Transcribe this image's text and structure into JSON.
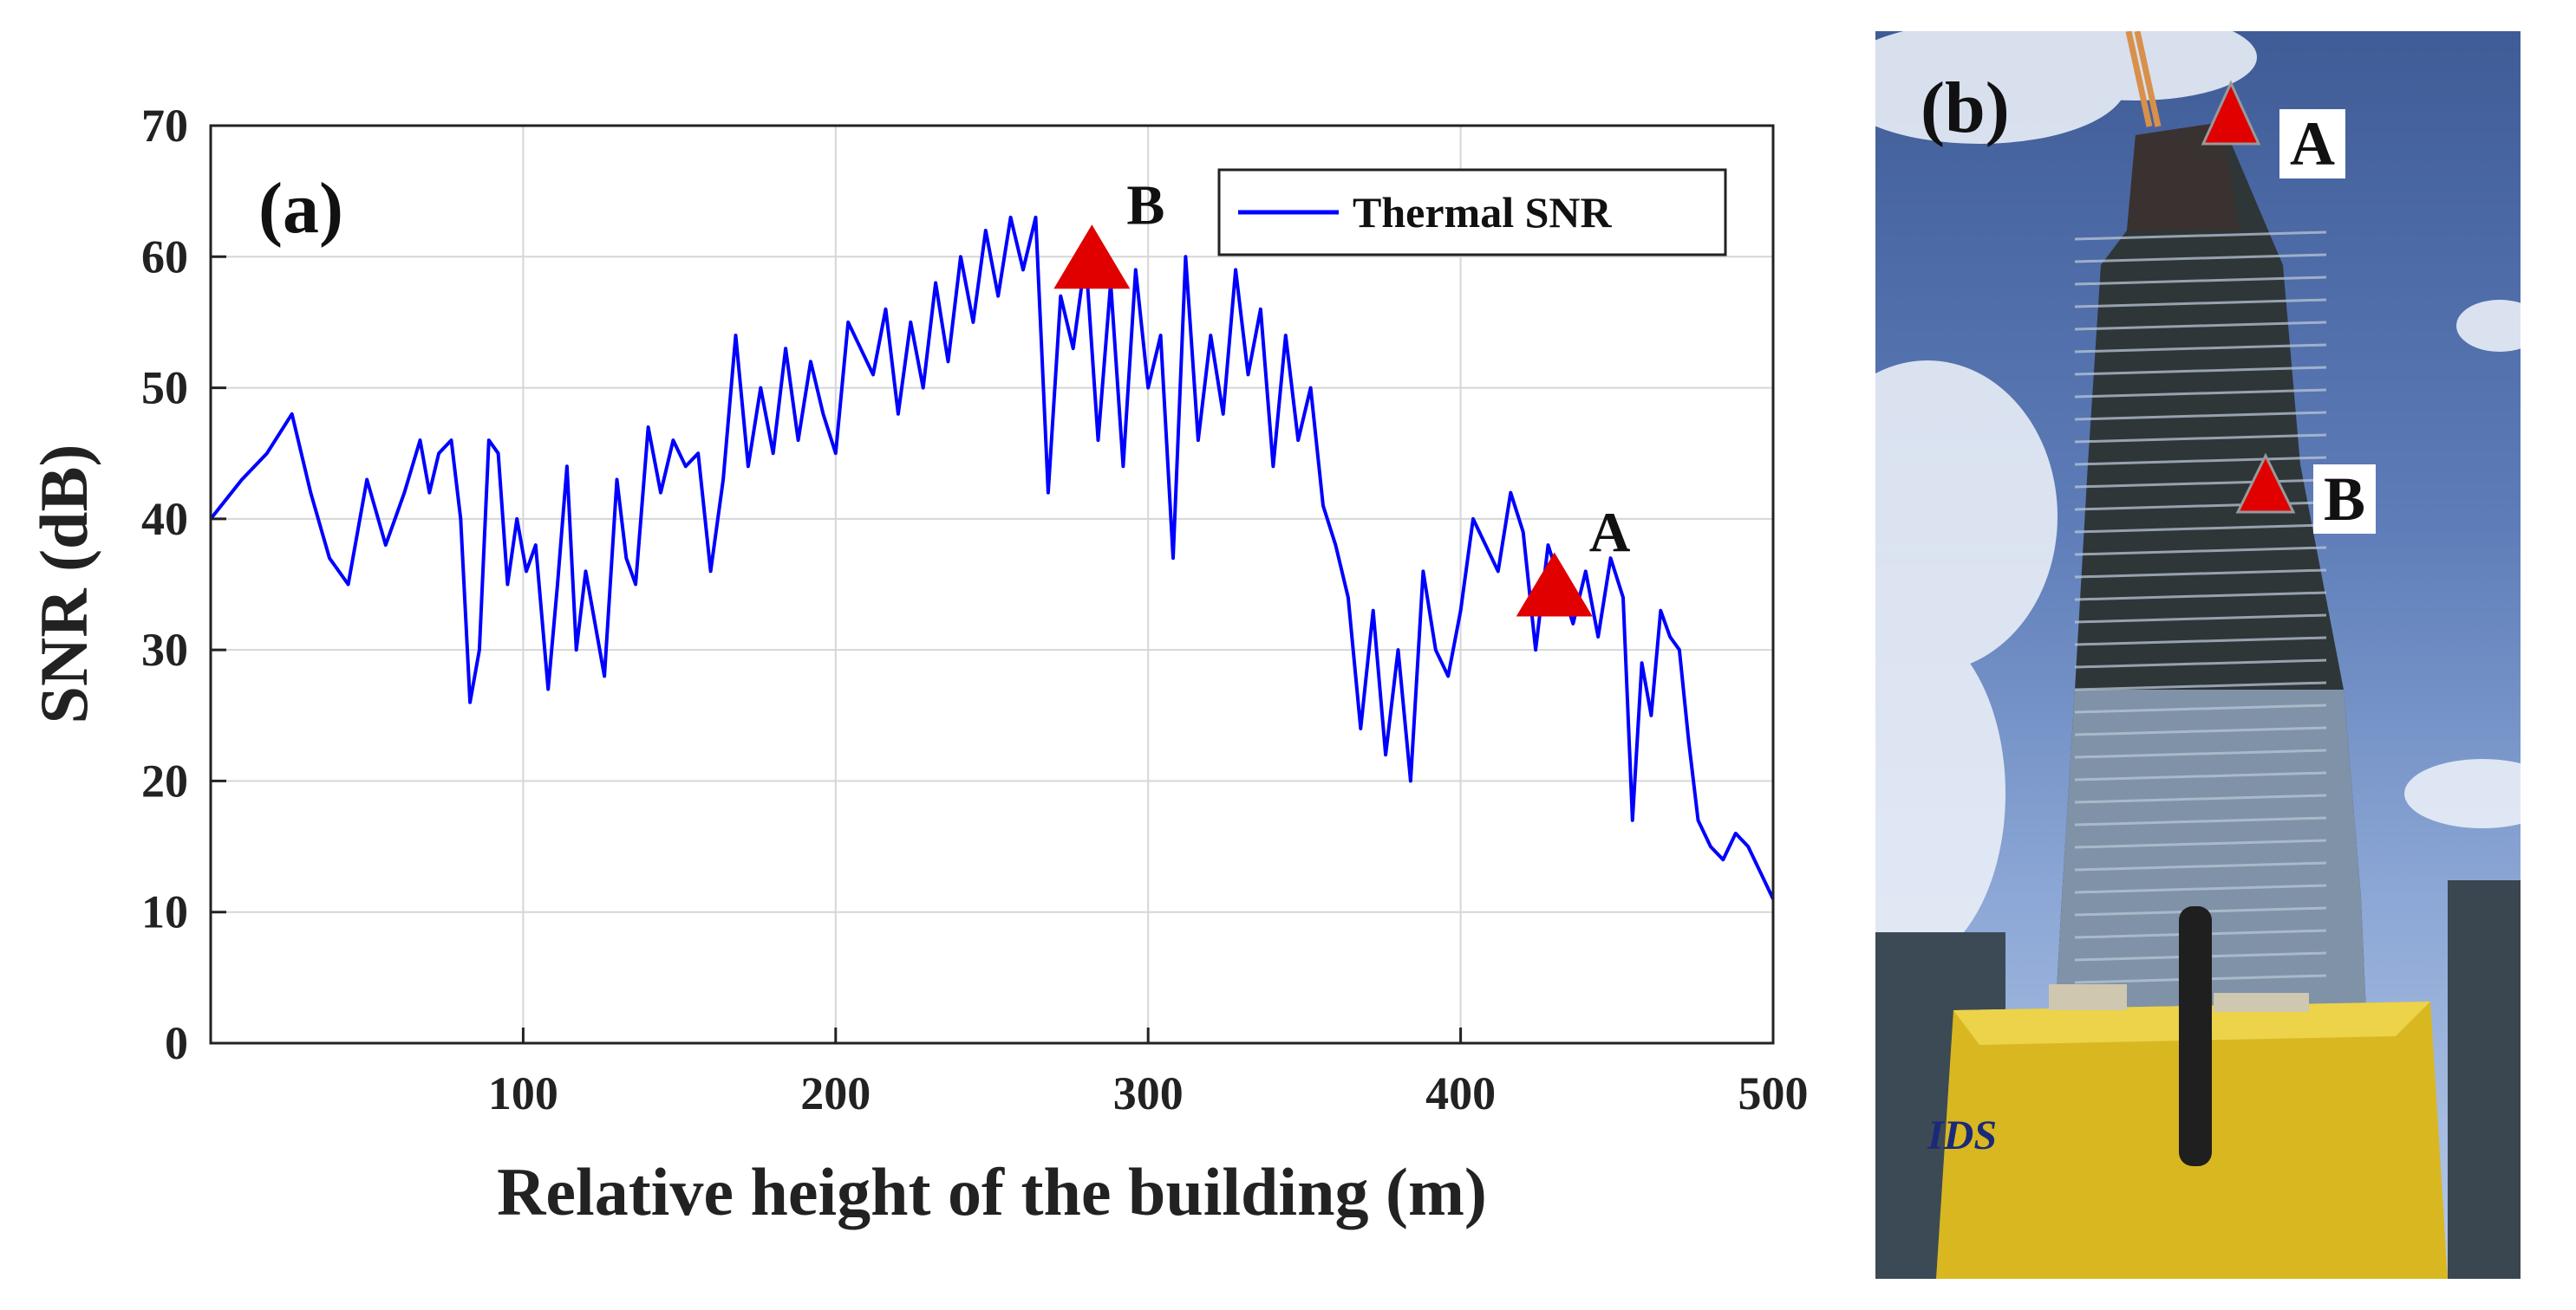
{
  "chart_data": {
    "type": "line",
    "panel_label": "(a)",
    "xlabel": "Relative height of the building (m)",
    "ylabel": "SNR (dB)",
    "xlim": [
      0,
      500
    ],
    "ylim": [
      0,
      70
    ],
    "xticks": [
      100,
      200,
      300,
      400,
      500
    ],
    "yticks": [
      0,
      10,
      20,
      30,
      40,
      50,
      60,
      70
    ],
    "grid": true,
    "legend_position": "top-right",
    "series": [
      {
        "name": "Thermal SNR",
        "color": "#0000ff",
        "x": [
          0,
          10,
          18,
          26,
          32,
          38,
          44,
          50,
          56,
          62,
          67,
          70,
          73,
          77,
          80,
          83,
          86,
          89,
          92,
          95,
          98,
          101,
          104,
          108,
          111,
          114,
          117,
          120,
          123,
          126,
          130,
          133,
          136,
          140,
          144,
          148,
          152,
          156,
          160,
          164,
          168,
          172,
          176,
          180,
          184,
          188,
          192,
          196,
          200,
          204,
          208,
          212,
          216,
          220,
          224,
          228,
          232,
          236,
          240,
          244,
          248,
          252,
          256,
          260,
          264,
          268,
          272,
          276,
          280,
          284,
          288,
          292,
          296,
          300,
          304,
          308,
          312,
          316,
          320,
          324,
          328,
          332,
          336,
          340,
          344,
          348,
          352,
          356,
          360,
          364,
          368,
          372,
          376,
          380,
          384,
          388,
          392,
          396,
          400,
          404,
          408,
          412,
          416,
          420,
          424,
          428,
          432,
          436,
          440,
          444,
          448,
          452,
          455,
          458,
          461,
          464,
          467,
          470,
          473,
          476,
          480,
          484,
          488,
          492,
          496,
          500
        ],
        "values": [
          40,
          43,
          45,
          48,
          42,
          37,
          35,
          43,
          38,
          42,
          46,
          42,
          45,
          46,
          40,
          26,
          30,
          46,
          45,
          35,
          40,
          36,
          38,
          27,
          35,
          44,
          30,
          36,
          32,
          28,
          43,
          37,
          35,
          47,
          42,
          46,
          44,
          45,
          36,
          43,
          54,
          44,
          50,
          45,
          53,
          46,
          52,
          48,
          45,
          55,
          53,
          51,
          56,
          48,
          55,
          50,
          58,
          52,
          60,
          55,
          62,
          57,
          63,
          59,
          63,
          42,
          57,
          53,
          60,
          46,
          58,
          44,
          59,
          50,
          54,
          37,
          60,
          46,
          54,
          48,
          59,
          51,
          56,
          44,
          54,
          46,
          50,
          41,
          38,
          34,
          24,
          33,
          22,
          30,
          20,
          36,
          30,
          28,
          33,
          40,
          38,
          36,
          42,
          39,
          30,
          38,
          35,
          32,
          36,
          31,
          37,
          34,
          17,
          29,
          25,
          33,
          31,
          30,
          23,
          17,
          15,
          14,
          16,
          15,
          13,
          11
        ]
      }
    ],
    "markers": [
      {
        "label": "B",
        "x": 282,
        "y": 60
      },
      {
        "label": "A",
        "x": 430,
        "y": 35
      }
    ]
  },
  "photo": {
    "panel_label": "(b)",
    "marker_labels": [
      "A",
      "B"
    ],
    "brand_text": "IDS"
  },
  "colors": {
    "series": "#0000ff",
    "marker": "#e00000",
    "grid": "#d6d6d6",
    "axis": "#222222"
  }
}
